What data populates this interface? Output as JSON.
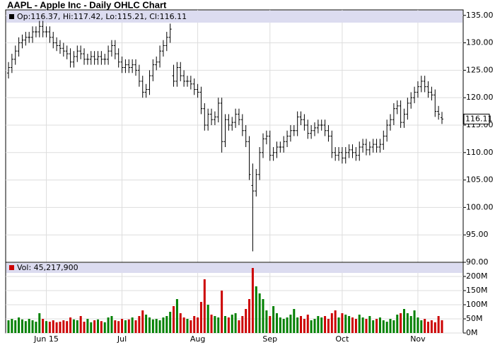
{
  "chart_data": {
    "type": "ohlc",
    "title": "AAPL - Apple Inc - Daily OHLC Chart",
    "ohlc_label": "Op:116.37, Hi:117.42, Lo:115.21, Cl:116.11",
    "volume_label": "Vol: 45,217,900",
    "categories": [
      null,
      null,
      null,
      null,
      null,
      null,
      null,
      null,
      null,
      null,
      null,
      "Jun 15",
      null,
      null,
      null,
      null,
      null,
      null,
      null,
      null,
      null,
      null,
      null,
      null,
      null,
      null,
      null,
      null,
      null,
      null,
      null,
      null,
      null,
      "Jul",
      null,
      null,
      null,
      null,
      null,
      null,
      null,
      null,
      null,
      null,
      null,
      null,
      null,
      null,
      null,
      null,
      null,
      null,
      null,
      null,
      null,
      "Aug",
      null,
      null,
      null,
      null,
      null,
      null,
      null,
      null,
      null,
      null,
      null,
      null,
      null,
      null,
      null,
      null,
      null,
      null,
      null,
      null,
      "Sep",
      null,
      null,
      null,
      null,
      null,
      null,
      null,
      null,
      null,
      null,
      null,
      null,
      null,
      null,
      null,
      null,
      null,
      null,
      null,
      null,
      "Oct",
      null,
      null,
      null,
      null,
      null,
      null,
      null,
      null,
      null,
      null,
      null,
      null,
      null,
      null,
      null,
      null,
      null,
      null,
      null,
      null,
      null,
      "Nov",
      null,
      null,
      null,
      null,
      null,
      null,
      null
    ],
    "open": [
      124.5,
      125.5,
      127,
      128.5,
      130,
      130.5,
      131,
      131,
      132,
      132,
      133,
      132,
      132,
      131,
      130,
      129.5,
      129,
      128.5,
      128,
      126.5,
      127.5,
      128.5,
      128,
      127,
      127,
      127.5,
      127,
      127.5,
      127,
      127,
      128.5,
      129.5,
      128,
      126.5,
      125.5,
      126,
      125.5,
      126,
      125,
      123,
      121,
      121.5,
      124,
      126,
      126.5,
      128.5,
      129.5,
      131,
      124,
      123,
      125.5,
      124,
      123,
      123,
      122.5,
      121.5,
      121,
      118,
      115,
      117,
      116,
      116.5,
      119,
      112,
      116,
      115,
      115.5,
      117,
      116,
      114,
      112,
      104,
      103,
      106,
      110,
      112.5,
      113,
      109.5,
      110,
      111,
      111,
      112,
      113,
      114,
      114,
      116.5,
      116,
      115,
      113.5,
      114,
      114.5,
      115,
      115,
      114,
      113,
      110,
      109.5,
      110,
      109,
      110,
      110.5,
      110,
      109.5,
      111,
      111.5,
      110.5,
      111,
      111.5,
      111,
      111.5,
      113,
      115,
      116,
      118,
      118.5,
      115.5,
      117,
      119,
      120,
      121,
      122,
      123,
      122,
      121,
      120.5,
      117.5,
      116.37
    ],
    "high": [
      126.5,
      128,
      129.5,
      131,
      131.5,
      132,
      132,
      133,
      133,
      134,
      134,
      133,
      133,
      132,
      131,
      130.5,
      130,
      129.5,
      129,
      128.5,
      129.5,
      129.5,
      129,
      128,
      128.5,
      128.5,
      128.5,
      128.5,
      128,
      129.5,
      130.5,
      130.5,
      129,
      127.5,
      127,
      127,
      127,
      127,
      126,
      124,
      122.5,
      125,
      127,
      127.5,
      129.5,
      130.5,
      132,
      133.5,
      126,
      126.5,
      126.5,
      125,
      124,
      124,
      123.5,
      122.5,
      122,
      119,
      118,
      118,
      117.5,
      120,
      120,
      117,
      117,
      116.5,
      118,
      118,
      117,
      115,
      113,
      108,
      107,
      111,
      113.5,
      114,
      114,
      111,
      112,
      112,
      113,
      114,
      115,
      115,
      117.5,
      117.5,
      117,
      116,
      115,
      115.5,
      116,
      116,
      116,
      115,
      114,
      111,
      111,
      111,
      111,
      111.5,
      111.5,
      111,
      112,
      112.5,
      112.5,
      112,
      112.5,
      112.5,
      112.5,
      114,
      116,
      117,
      119,
      119.5,
      119.5,
      118,
      120,
      121,
      122,
      123,
      124,
      124,
      123,
      122,
      121.5,
      118.5,
      117.42
    ],
    "low": [
      123.5,
      124.5,
      126,
      127.5,
      129,
      129.5,
      130,
      130,
      131,
      131,
      131,
      131,
      130,
      129,
      128.5,
      128,
      127.5,
      127,
      125.5,
      125.5,
      126.5,
      127,
      126,
      126,
      126,
      126,
      126,
      126,
      126,
      126,
      127.5,
      127,
      125.5,
      124.5,
      124.5,
      124.5,
      124.5,
      124,
      122,
      120,
      120,
      120.5,
      123,
      125,
      125.5,
      127.5,
      128.5,
      130,
      122,
      122,
      123,
      122,
      122,
      121.5,
      120.5,
      120,
      117,
      114,
      114,
      115,
      115,
      115.5,
      110,
      111,
      114,
      114,
      114.5,
      115,
      113,
      111,
      105,
      92,
      102,
      105,
      109,
      111.5,
      108.5,
      108.5,
      109,
      110,
      110,
      111,
      112,
      113,
      113,
      115,
      114,
      112.5,
      112.5,
      113,
      113.5,
      114,
      113,
      112,
      109,
      108.5,
      108.5,
      108,
      108,
      109,
      109,
      108.5,
      108.5,
      110,
      109.5,
      109.5,
      110,
      110,
      110,
      110.5,
      112,
      114,
      115,
      117,
      114.5,
      114.5,
      116,
      118,
      119,
      120,
      121,
      121,
      120,
      119.5,
      116.5,
      116,
      115.21
    ],
    "close": [
      125.5,
      127,
      128.5,
      130,
      130.5,
      131,
      131,
      132,
      132,
      133,
      132,
      132,
      131,
      130,
      129.5,
      129,
      128.5,
      128,
      126.5,
      127.5,
      128.5,
      128,
      127,
      127,
      127.5,
      127,
      127.5,
      127,
      127,
      128.5,
      129.5,
      128,
      126.5,
      125.5,
      126,
      125.5,
      126,
      125,
      123,
      121,
      121.5,
      124,
      126,
      126.5,
      128.5,
      129.5,
      131,
      132.5,
      123,
      125.5,
      124,
      123,
      123,
      122.5,
      121.5,
      121,
      118,
      115,
      117,
      116,
      116.5,
      119,
      112,
      116,
      115,
      115.5,
      117,
      116,
      114,
      112,
      106,
      103,
      106,
      110,
      112.5,
      113,
      109.5,
      110,
      111,
      111,
      112,
      113,
      114,
      114,
      116.5,
      116,
      115,
      113.5,
      114,
      114.5,
      115,
      115,
      114,
      113,
      110,
      109.5,
      110,
      109,
      110,
      110.5,
      110,
      109.5,
      111,
      111.5,
      110.5,
      111,
      111.5,
      111,
      111.5,
      113,
      115,
      116,
      118,
      118.5,
      115.5,
      117,
      119,
      120,
      121,
      122,
      123,
      122,
      121,
      120.5,
      117.5,
      117,
      116.11
    ],
    "volume": [
      45,
      50,
      45,
      55,
      48,
      42,
      50,
      45,
      40,
      70,
      50,
      42,
      40,
      45,
      38,
      40,
      45,
      42,
      55,
      48,
      45,
      60,
      40,
      50,
      38,
      45,
      48,
      42,
      38,
      55,
      60,
      45,
      42,
      50,
      45,
      48,
      55,
      45,
      60,
      80,
      65,
      55,
      48,
      50,
      45,
      55,
      60,
      75,
      95,
      120,
      70,
      55,
      50,
      45,
      60,
      55,
      110,
      190,
      100,
      65,
      60,
      55,
      150,
      60,
      55,
      65,
      70,
      45,
      60,
      85,
      120,
      230,
      165,
      140,
      120,
      80,
      60,
      95,
      70,
      55,
      50,
      55,
      65,
      85,
      55,
      60,
      50,
      65,
      45,
      50,
      60,
      55,
      60,
      50,
      70,
      80,
      55,
      70,
      65,
      60,
      55,
      50,
      65,
      55,
      50,
      60,
      45,
      50,
      55,
      45,
      40,
      50,
      45,
      65,
      70,
      85,
      70,
      60,
      80,
      55,
      45,
      50,
      40,
      45,
      38,
      60,
      45.2179
    ],
    "ylim": [
      90,
      136
    ],
    "yticks": [
      {
        "value": 90,
        "label": "90.00"
      },
      {
        "value": 95,
        "label": "95.00"
      },
      {
        "value": 100,
        "label": "100.00"
      },
      {
        "value": 105,
        "label": "105.00"
      },
      {
        "value": 110,
        "label": "110.00"
      },
      {
        "value": 115,
        "label": "115.00"
      },
      {
        "value": 120,
        "label": "120.00"
      },
      {
        "value": 125,
        "label": "125.00"
      },
      {
        "value": 130,
        "label": "130.00"
      },
      {
        "value": 135,
        "label": "135.00"
      }
    ],
    "volume_ylim": [
      0,
      250
    ],
    "volume_ticks": [
      {
        "value": 0,
        "label": "0M"
      },
      {
        "value": 50,
        "label": "50M"
      },
      {
        "value": 100,
        "label": "100M"
      },
      {
        "value": 150,
        "label": "150M"
      },
      {
        "value": 200,
        "label": "200M"
      }
    ],
    "bar_color": "#000000",
    "up_color": "#008000",
    "down_color": "#cc0000",
    "grid": true
  }
}
